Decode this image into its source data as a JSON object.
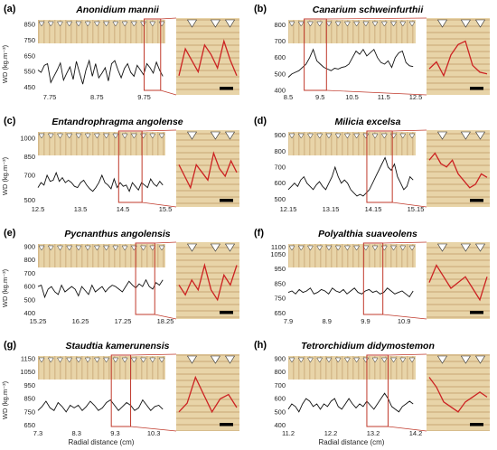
{
  "figure": {
    "y_axis_label": "WD (kg.m⁻³)",
    "x_axis_label": "Radial distance (cm)"
  },
  "chart_data": [
    {
      "type": "line",
      "panel": "(a)",
      "title": "Anonidium mannii",
      "x_ticks": [
        "7.75",
        "8.75",
        "9.75"
      ],
      "y_ticks": [
        850,
        750,
        650,
        550,
        450
      ],
      "ylim": [
        430,
        880
      ],
      "xlim": [
        7.5,
        10.2
      ],
      "y": [
        560,
        545,
        590,
        600,
        480,
        520,
        560,
        605,
        495,
        540,
        580,
        500,
        615,
        540,
        470,
        560,
        620,
        520,
        600,
        510,
        540,
        575,
        490,
        600,
        620,
        560,
        510,
        570,
        600,
        545,
        520,
        590,
        560,
        530,
        600,
        575,
        540,
        610,
        560,
        520
      ],
      "highlight": [
        9.75,
        10.1
      ]
    },
    {
      "type": "line",
      "panel": "(b)",
      "title": "Canarium schweinfurthii",
      "x_ticks": [
        "8.5",
        "9.5",
        "10.5",
        "11.5",
        "12.5"
      ],
      "y_ticks": [
        800,
        700,
        600,
        500,
        400
      ],
      "ylim": [
        400,
        830
      ],
      "xlim": [
        8.5,
        12.5
      ],
      "y": [
        480,
        500,
        510,
        520,
        540,
        560,
        600,
        650,
        580,
        560,
        540,
        530,
        520,
        535,
        530,
        540,
        545,
        560,
        600,
        640,
        620,
        650,
        610,
        630,
        650,
        600,
        570,
        560,
        580,
        540,
        600,
        630,
        640,
        570,
        550,
        545
      ],
      "highlight": [
        9.0,
        9.7
      ]
    },
    {
      "type": "line",
      "panel": "(c)",
      "title": "Entandrophragma angolense",
      "x_ticks": [
        "12.5",
        "13.5",
        "14.5",
        "15.5"
      ],
      "y_ticks": [
        1000,
        850,
        700,
        500
      ],
      "ylim": [
        480,
        1050
      ],
      "xlim": [
        12.5,
        15.5
      ],
      "y": [
        600,
        640,
        620,
        700,
        650,
        660,
        720,
        650,
        680,
        640,
        660,
        640,
        610,
        600,
        640,
        660,
        620,
        590,
        570,
        600,
        640,
        700,
        640,
        620,
        590,
        670,
        600,
        640,
        610,
        620,
        570,
        640,
        610,
        580,
        640,
        620,
        600,
        670,
        630,
        610,
        650,
        620
      ],
      "highlight": [
        14.4,
        14.95
      ]
    },
    {
      "type": "line",
      "panel": "(d)",
      "title": "Milicia excelsa",
      "x_ticks": [
        "12.15",
        "13.15",
        "14.15",
        "15.15"
      ],
      "y_ticks": [
        900,
        800,
        700,
        600,
        500
      ],
      "ylim": [
        480,
        920
      ],
      "xlim": [
        12.15,
        15.15
      ],
      "y": [
        560,
        580,
        600,
        580,
        620,
        640,
        600,
        580,
        560,
        590,
        610,
        580,
        560,
        600,
        640,
        700,
        640,
        600,
        620,
        600,
        560,
        540,
        520,
        530,
        520,
        540,
        560,
        600,
        640,
        680,
        720,
        760,
        700,
        680,
        720,
        640,
        600,
        560,
        580,
        640,
        620
      ],
      "highlight": [
        14.0,
        14.6
      ]
    },
    {
      "type": "line",
      "panel": "(e)",
      "title": "Pycnanthus angolensis",
      "x_ticks": [
        "15.25",
        "16.25",
        "17.25",
        "18.25"
      ],
      "y_ticks": [
        900,
        800,
        700,
        600,
        500,
        400
      ],
      "ylim": [
        390,
        920
      ],
      "xlim": [
        15.25,
        18.25
      ],
      "y": [
        600,
        610,
        520,
        580,
        600,
        560,
        540,
        610,
        560,
        580,
        600,
        580,
        530,
        600,
        570,
        540,
        610,
        560,
        580,
        600,
        560,
        590,
        610,
        600,
        580,
        560,
        600,
        640,
        610,
        590,
        620,
        600,
        650,
        600,
        580,
        630,
        610,
        650
      ],
      "highlight": [
        17.55,
        18.0
      ]
    },
    {
      "type": "line",
      "panel": "(f)",
      "title": "Polyalthia suaveolens",
      "x_ticks": [
        "7.9",
        "8.9",
        "9.9",
        "10.9"
      ],
      "y_ticks": [
        1100,
        1050,
        950,
        850,
        750,
        650
      ],
      "ylim": [
        640,
        1120
      ],
      "xlim": [
        7.9,
        11.2
      ],
      "y": [
        790,
        800,
        780,
        810,
        790,
        800,
        820,
        780,
        790,
        810,
        800,
        780,
        820,
        800,
        790,
        810,
        780,
        800,
        820,
        790,
        780,
        800,
        810,
        790,
        800,
        780,
        790,
        820,
        800,
        780,
        790,
        800,
        780,
        760,
        800
      ],
      "highlight": [
        9.85,
        10.35
      ]
    },
    {
      "type": "line",
      "panel": "(g)",
      "title": "Staudtia kamerunensis",
      "x_ticks": [
        "7.3",
        "8.3",
        "9.3",
        "10.3"
      ],
      "y_ticks": [
        1150,
        1050,
        950,
        850,
        750,
        650
      ],
      "ylim": [
        640,
        1170
      ],
      "xlim": [
        7.3,
        10.6
      ],
      "y": [
        760,
        790,
        830,
        780,
        760,
        820,
        790,
        750,
        800,
        780,
        800,
        760,
        790,
        830,
        800,
        760,
        780,
        820,
        840,
        800,
        760,
        790,
        820,
        800,
        760,
        780,
        840,
        800,
        760,
        790,
        800,
        770
      ],
      "highlight": [
        9.2,
        9.7
      ]
    },
    {
      "type": "line",
      "panel": "(h)",
      "title": "Tetrorchidium didymostemon",
      "x_ticks": [
        "11.2",
        "12.2",
        "13.2",
        "14.2"
      ],
      "y_ticks": [
        900,
        800,
        700,
        600,
        500,
        400
      ],
      "ylim": [
        390,
        920
      ],
      "xlim": [
        11.2,
        14.2
      ],
      "y": [
        520,
        560,
        540,
        500,
        560,
        600,
        580,
        540,
        560,
        520,
        560,
        540,
        580,
        600,
        540,
        520,
        560,
        600,
        560,
        530,
        560,
        540,
        580,
        550,
        520,
        560,
        600,
        640,
        600,
        540,
        520,
        500,
        540,
        560,
        580,
        560
      ],
      "highlight": [
        13.05,
        13.55
      ]
    }
  ],
  "labels": {
    "a": "(a)",
    "b": "(b)",
    "c": "(c)",
    "d": "(d)",
    "e": "(e)",
    "f": "(f)",
    "g": "(g)",
    "h": "(h)"
  },
  "colors": {
    "wood_light": "#e8d4a8",
    "wood_dark": "#c9a978",
    "box": "#c0392b",
    "line": "#111111",
    "profile": "#cc2222"
  }
}
